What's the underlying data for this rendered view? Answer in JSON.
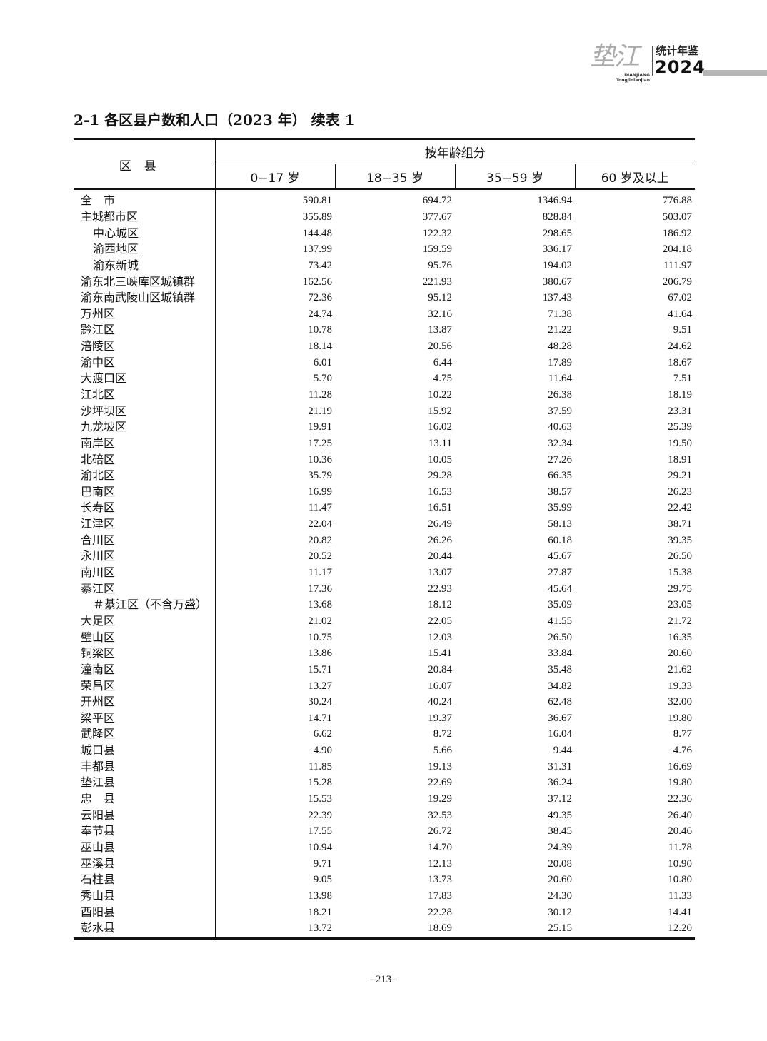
{
  "header": {
    "logo_calligraphy": "垫江",
    "logo_pinyin_1": "DIANJIANG",
    "logo_pinyin_2": "Tongjinianjian",
    "logo_text": "统计年鉴",
    "logo_year": "2024"
  },
  "title": "2-1  各区县户数和人口（2023 年）  续表 1",
  "table": {
    "region_header": "区县",
    "group_header": "按年龄组分",
    "columns": [
      "0−17 岁",
      "18−35 岁",
      "35−59 岁",
      "60 岁及以上"
    ],
    "rows": [
      {
        "name": "全　市",
        "indent": false,
        "values": [
          "590.81",
          "694.72",
          "1346.94",
          "776.88"
        ]
      },
      {
        "name": "主城都市区",
        "indent": false,
        "values": [
          "355.89",
          "377.67",
          "828.84",
          "503.07"
        ]
      },
      {
        "name": "中心城区",
        "indent": true,
        "values": [
          "144.48",
          "122.32",
          "298.65",
          "186.92"
        ]
      },
      {
        "name": "渝西地区",
        "indent": true,
        "values": [
          "137.99",
          "159.59",
          "336.17",
          "204.18"
        ]
      },
      {
        "name": "渝东新城",
        "indent": true,
        "values": [
          "73.42",
          "95.76",
          "194.02",
          "111.97"
        ]
      },
      {
        "name": "渝东北三峡库区城镇群",
        "indent": false,
        "values": [
          "162.56",
          "221.93",
          "380.67",
          "206.79"
        ]
      },
      {
        "name": "渝东南武陵山区城镇群",
        "indent": false,
        "values": [
          "72.36",
          "95.12",
          "137.43",
          "67.02"
        ]
      },
      {
        "name": "万州区",
        "indent": false,
        "values": [
          "24.74",
          "32.16",
          "71.38",
          "41.64"
        ]
      },
      {
        "name": "黔江区",
        "indent": false,
        "values": [
          "10.78",
          "13.87",
          "21.22",
          "9.51"
        ]
      },
      {
        "name": "涪陵区",
        "indent": false,
        "values": [
          "18.14",
          "20.56",
          "48.28",
          "24.62"
        ]
      },
      {
        "name": "渝中区",
        "indent": false,
        "values": [
          "6.01",
          "6.44",
          "17.89",
          "18.67"
        ]
      },
      {
        "name": "大渡口区",
        "indent": false,
        "values": [
          "5.70",
          "4.75",
          "11.64",
          "7.51"
        ]
      },
      {
        "name": "江北区",
        "indent": false,
        "values": [
          "11.28",
          "10.22",
          "26.38",
          "18.19"
        ]
      },
      {
        "name": "沙坪坝区",
        "indent": false,
        "values": [
          "21.19",
          "15.92",
          "37.59",
          "23.31"
        ]
      },
      {
        "name": "九龙坡区",
        "indent": false,
        "values": [
          "19.91",
          "16.02",
          "40.63",
          "25.39"
        ]
      },
      {
        "name": "南岸区",
        "indent": false,
        "values": [
          "17.25",
          "13.11",
          "32.34",
          "19.50"
        ]
      },
      {
        "name": "北碚区",
        "indent": false,
        "values": [
          "10.36",
          "10.05",
          "27.26",
          "18.91"
        ]
      },
      {
        "name": "渝北区",
        "indent": false,
        "values": [
          "35.79",
          "29.28",
          "66.35",
          "29.21"
        ]
      },
      {
        "name": "巴南区",
        "indent": false,
        "values": [
          "16.99",
          "16.53",
          "38.57",
          "26.23"
        ]
      },
      {
        "name": "长寿区",
        "indent": false,
        "values": [
          "11.47",
          "16.51",
          "35.99",
          "22.42"
        ]
      },
      {
        "name": "江津区",
        "indent": false,
        "values": [
          "22.04",
          "26.49",
          "58.13",
          "38.71"
        ]
      },
      {
        "name": "合川区",
        "indent": false,
        "values": [
          "20.82",
          "26.26",
          "60.18",
          "39.35"
        ]
      },
      {
        "name": "永川区",
        "indent": false,
        "values": [
          "20.52",
          "20.44",
          "45.67",
          "26.50"
        ]
      },
      {
        "name": "南川区",
        "indent": false,
        "values": [
          "11.17",
          "13.07",
          "27.87",
          "15.38"
        ]
      },
      {
        "name": "綦江区",
        "indent": false,
        "values": [
          "17.36",
          "22.93",
          "45.64",
          "29.75"
        ]
      },
      {
        "name": "＃綦江区（不含万盛）",
        "indent": true,
        "values": [
          "13.68",
          "18.12",
          "35.09",
          "23.05"
        ]
      },
      {
        "name": "大足区",
        "indent": false,
        "values": [
          "21.02",
          "22.05",
          "41.55",
          "21.72"
        ]
      },
      {
        "name": "璧山区",
        "indent": false,
        "values": [
          "10.75",
          "12.03",
          "26.50",
          "16.35"
        ]
      },
      {
        "name": "铜梁区",
        "indent": false,
        "values": [
          "13.86",
          "15.41",
          "33.84",
          "20.60"
        ]
      },
      {
        "name": "潼南区",
        "indent": false,
        "values": [
          "15.71",
          "20.84",
          "35.48",
          "21.62"
        ]
      },
      {
        "name": "荣昌区",
        "indent": false,
        "values": [
          "13.27",
          "16.07",
          "34.82",
          "19.33"
        ]
      },
      {
        "name": "开州区",
        "indent": false,
        "values": [
          "30.24",
          "40.24",
          "62.48",
          "32.00"
        ]
      },
      {
        "name": "梁平区",
        "indent": false,
        "values": [
          "14.71",
          "19.37",
          "36.67",
          "19.80"
        ]
      },
      {
        "name": "武隆区",
        "indent": false,
        "values": [
          "6.62",
          "8.72",
          "16.04",
          "8.77"
        ]
      },
      {
        "name": "城口县",
        "indent": false,
        "values": [
          "4.90",
          "5.66",
          "9.44",
          "4.76"
        ]
      },
      {
        "name": "丰都县",
        "indent": false,
        "values": [
          "11.85",
          "19.13",
          "31.31",
          "16.69"
        ]
      },
      {
        "name": "垫江县",
        "indent": false,
        "values": [
          "15.28",
          "22.69",
          "36.24",
          "19.80"
        ]
      },
      {
        "name": "忠　县",
        "indent": false,
        "values": [
          "15.53",
          "19.29",
          "37.12",
          "22.36"
        ]
      },
      {
        "name": "云阳县",
        "indent": false,
        "values": [
          "22.39",
          "32.53",
          "49.35",
          "26.40"
        ]
      },
      {
        "name": "奉节县",
        "indent": false,
        "values": [
          "17.55",
          "26.72",
          "38.45",
          "20.46"
        ]
      },
      {
        "name": "巫山县",
        "indent": false,
        "values": [
          "10.94",
          "14.70",
          "24.39",
          "11.78"
        ]
      },
      {
        "name": "巫溪县",
        "indent": false,
        "values": [
          "9.71",
          "12.13",
          "20.08",
          "10.90"
        ]
      },
      {
        "name": "石柱县",
        "indent": false,
        "values": [
          "9.05",
          "13.73",
          "20.60",
          "10.80"
        ]
      },
      {
        "name": "秀山县",
        "indent": false,
        "values": [
          "13.98",
          "17.83",
          "24.30",
          "11.33"
        ]
      },
      {
        "name": "酉阳县",
        "indent": false,
        "values": [
          "18.21",
          "22.28",
          "30.12",
          "14.41"
        ]
      },
      {
        "name": "彭水县",
        "indent": false,
        "values": [
          "13.72",
          "18.69",
          "25.15",
          "12.20"
        ]
      }
    ]
  },
  "page_number": "–213–"
}
